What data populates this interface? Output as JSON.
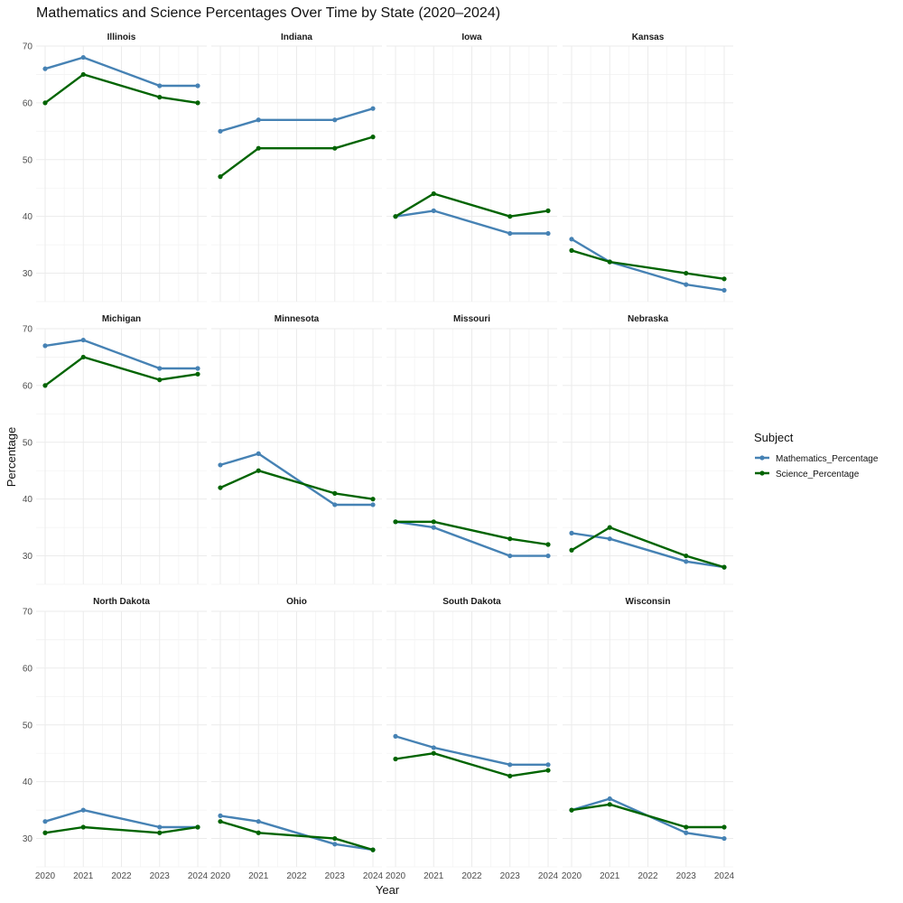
{
  "chart_data": {
    "type": "line",
    "title": "Mathematics and Science Percentages Over Time by State (2020–2024)",
    "xlabel": "Year",
    "ylabel": "Percentage",
    "x": [
      2020,
      2021,
      2023,
      2024
    ],
    "x_ticks": [
      2020,
      2021,
      2022,
      2023,
      2024
    ],
    "xlim": [
      2020,
      2024
    ],
    "y_ticks": [
      30,
      40,
      50,
      60,
      70
    ],
    "ylim": [
      25,
      70
    ],
    "grid": true,
    "legend": {
      "title": "Subject",
      "placement": "right",
      "entries": [
        {
          "name": "Mathematics_Percentage",
          "color": "#4682b4"
        },
        {
          "name": "Science_Percentage",
          "color": "#006400"
        }
      ]
    },
    "facets": [
      {
        "state": "Illinois",
        "math": [
          66,
          68,
          63,
          63
        ],
        "science": [
          60,
          65,
          61,
          60
        ]
      },
      {
        "state": "Indiana",
        "math": [
          55,
          57,
          57,
          59
        ],
        "science": [
          47,
          52,
          52,
          54
        ]
      },
      {
        "state": "Iowa",
        "math": [
          40,
          41,
          37,
          37
        ],
        "science": [
          40,
          44,
          40,
          41
        ]
      },
      {
        "state": "Kansas",
        "math": [
          36,
          32,
          28,
          27
        ],
        "science": [
          34,
          32,
          30,
          29
        ]
      },
      {
        "state": "Michigan",
        "math": [
          67,
          68,
          63,
          63
        ],
        "science": [
          60,
          65,
          61,
          62
        ]
      },
      {
        "state": "Minnesota",
        "math": [
          46,
          48,
          39,
          39
        ],
        "science": [
          42,
          45,
          41,
          40
        ]
      },
      {
        "state": "Missouri",
        "math": [
          36,
          35,
          30,
          30
        ],
        "science": [
          36,
          36,
          33,
          32
        ]
      },
      {
        "state": "Nebraska",
        "math": [
          34,
          33,
          29,
          28
        ],
        "science": [
          31,
          35,
          30,
          28
        ]
      },
      {
        "state": "North Dakota",
        "math": [
          33,
          35,
          32,
          32
        ],
        "science": [
          31,
          32,
          31,
          32
        ]
      },
      {
        "state": "Ohio",
        "math": [
          34,
          33,
          29,
          28
        ],
        "science": [
          33,
          31,
          30,
          28
        ]
      },
      {
        "state": "South Dakota",
        "math": [
          48,
          46,
          43,
          43
        ],
        "science": [
          44,
          45,
          41,
          42
        ]
      },
      {
        "state": "Wisconsin",
        "math": [
          35,
          37,
          31,
          30
        ],
        "science": [
          35,
          36,
          32,
          32
        ]
      }
    ]
  }
}
